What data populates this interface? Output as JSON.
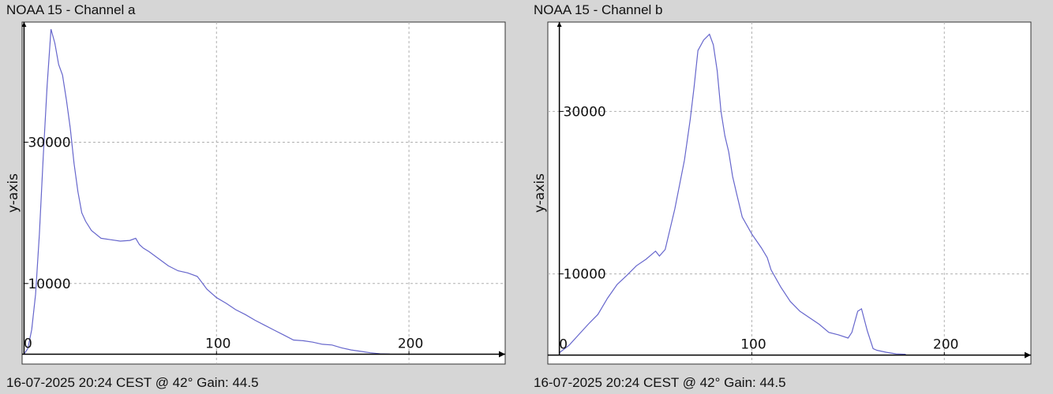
{
  "colors": {
    "background": "#d6d6d6",
    "plot_area": "#ffffff",
    "line": "#6666cc",
    "grid": "#b0b0b0",
    "axis": "#000000"
  },
  "chart_data": [
    {
      "type": "line",
      "title": "NOAA 15 - Channel a",
      "footer": "16-07-2025 20:24 CEST @ 42° Gain: 44.5",
      "ylabel": "y-axis",
      "xlim": [
        -1,
        250
      ],
      "ylim": [
        -1400,
        47000
      ],
      "xticks": [
        0,
        100,
        200
      ],
      "yticks": [
        10000,
        30000
      ],
      "grid": true,
      "series": [
        {
          "x": [
            0,
            2,
            4,
            6,
            8,
            10,
            12,
            14,
            16,
            18,
            20,
            22,
            24,
            26,
            28,
            30,
            32,
            35,
            40,
            45,
            50,
            55,
            58,
            60,
            62,
            65,
            70,
            75,
            80,
            85,
            90,
            92,
            95,
            100,
            105,
            110,
            115,
            120,
            125,
            130,
            135,
            140,
            145,
            150,
            155,
            160,
            165,
            170,
            175,
            180,
            185,
            190
          ],
          "values": [
            0,
            800,
            3500,
            8500,
            17000,
            28000,
            38000,
            46000,
            44000,
            41000,
            39500,
            36000,
            32000,
            27000,
            23000,
            20000,
            18800,
            17500,
            16400,
            16200,
            16000,
            16100,
            16400,
            15500,
            15000,
            14500,
            13500,
            12500,
            11800,
            11500,
            11000,
            10300,
            9200,
            8000,
            7200,
            6300,
            5600,
            4800,
            4100,
            3400,
            2700,
            2000,
            1900,
            1700,
            1400,
            1300,
            900,
            600,
            400,
            200,
            50,
            0
          ]
        }
      ]
    },
    {
      "type": "line",
      "title": "NOAA 15 - Channel b",
      "footer": "16-07-2025 20:24 CEST @ 42° Gain: 44.5",
      "ylabel": "y-axis",
      "xlim": [
        -6,
        245
      ],
      "ylim": [
        -1100,
        41000
      ],
      "xticks": [
        0,
        100,
        200
      ],
      "yticks": [
        10000,
        30000
      ],
      "grid": true,
      "series": [
        {
          "x": [
            0,
            5,
            10,
            15,
            20,
            25,
            30,
            35,
            40,
            45,
            50,
            52,
            55,
            60,
            65,
            68,
            70,
            72,
            75,
            78,
            80,
            82,
            84,
            86,
            88,
            90,
            92,
            95,
            100,
            105,
            108,
            110,
            115,
            120,
            125,
            130,
            135,
            140,
            145,
            150,
            152,
            155,
            157,
            160,
            163,
            165,
            170,
            175,
            180
          ],
          "values": [
            300,
            1200,
            2500,
            3800,
            5000,
            7000,
            8700,
            9800,
            11000,
            11800,
            12800,
            12200,
            13000,
            18000,
            24000,
            29000,
            33000,
            37500,
            38800,
            39500,
            38200,
            35000,
            30000,
            27000,
            25000,
            22000,
            20000,
            17000,
            14900,
            13200,
            12000,
            10500,
            8400,
            6600,
            5400,
            4600,
            3800,
            2800,
            2500,
            2100,
            2800,
            5400,
            5700,
            3000,
            800,
            600,
            350,
            150,
            100
          ]
        }
      ]
    }
  ]
}
